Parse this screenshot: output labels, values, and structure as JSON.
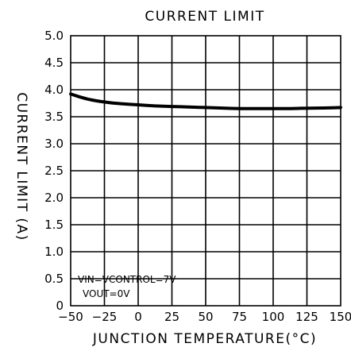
{
  "chart_data": {
    "type": "line",
    "title": "CURRENT LIMIT",
    "xlabel": "JUNCTION TEMPERATURE(°C)",
    "ylabel": "CURRENT LIMIT (A)",
    "xlim": [
      -50,
      150
    ],
    "ylim": [
      0,
      5.0
    ],
    "x_ticks": [
      -50,
      -25,
      0,
      25,
      50,
      75,
      100,
      125,
      150
    ],
    "y_ticks": [
      0,
      0.5,
      1.0,
      1.5,
      2.0,
      2.5,
      3.0,
      3.5,
      4.0,
      4.5,
      5.0
    ],
    "x_tick_labels": [
      "−50",
      "−25",
      "0",
      "25",
      "50",
      "75",
      "100",
      "125",
      "150"
    ],
    "y_tick_labels": [
      "0",
      "0.5",
      "1.0",
      "1.5",
      "2.0",
      "2.5",
      "3.0",
      "3.5",
      "4.0",
      "4.5",
      "5.0"
    ],
    "grid": true,
    "annotations": [
      "VIN=VCONTROL=7V",
      "VOUT=0V"
    ],
    "series": [
      {
        "x": [
          -50,
          -37.5,
          -25,
          -12.5,
          0,
          12.5,
          25,
          37.5,
          50,
          62.5,
          75,
          87.5,
          100,
          112.5,
          125,
          137.5,
          150
        ],
        "y": [
          3.92,
          3.82,
          3.77,
          3.74,
          3.72,
          3.7,
          3.69,
          3.68,
          3.67,
          3.66,
          3.65,
          3.65,
          3.65,
          3.65,
          3.66,
          3.66,
          3.67
        ]
      }
    ]
  }
}
